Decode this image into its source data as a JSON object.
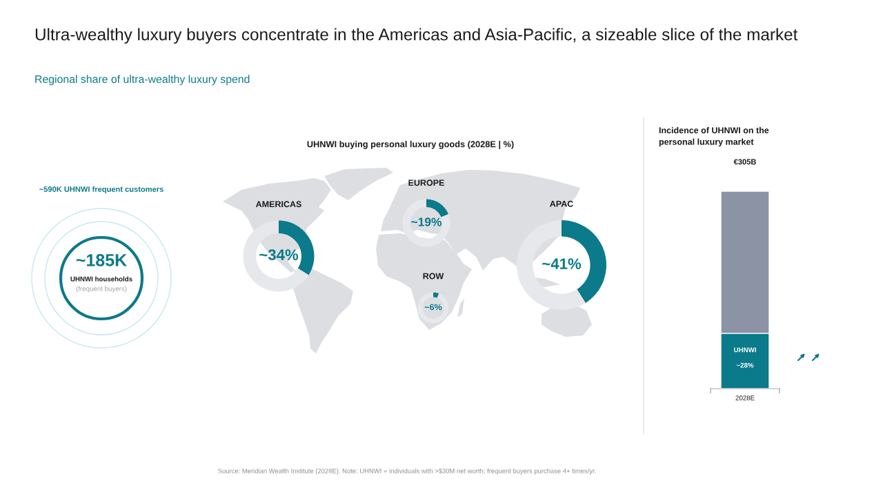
{
  "chart_data": [
    {
      "type": "other",
      "title": "Ultra-wealthy luxury buyers concentrate in the Americas and Asia-Pacific, a sizeable slice of the market",
      "subtitle": "Regional share of ultra-wealthy luxury spend",
      "annotations": [
        "Source: Meridian Wealth Institute (2028E). Note: UHNWI = individuals with >$30M net worth; frequent buyers purchase 4+ times/yr."
      ]
    },
    {
      "type": "other",
      "title": "~590K UHNWI frequent customers",
      "annotations": [
        "~185K",
        "UHNWI households",
        "(frequent buyers)"
      ]
    },
    {
      "type": "other",
      "title": "UHNWI buying personal luxury goods (2028E | %)"
    },
    {
      "type": "donut",
      "title": "AMERICAS",
      "categories": [
        null,
        null
      ],
      "values": [
        34,
        66
      ],
      "colors": [
        "#0b7a8a",
        "#e6e8eb"
      ],
      "value_labels": [
        "~34%",
        null
      ]
    },
    {
      "type": "donut",
      "title": "EUROPE",
      "categories": [
        null,
        null
      ],
      "values": [
        19,
        81
      ],
      "colors": [
        "#0b7a8a",
        "#e6e8eb"
      ],
      "value_labels": [
        "~19%",
        null
      ]
    },
    {
      "type": "donut",
      "title": "APAC",
      "categories": [
        null,
        null
      ],
      "values": [
        41,
        59
      ],
      "colors": [
        "#0b7a8a",
        "#e6e8eb"
      ],
      "value_labels": [
        "~41%",
        null
      ]
    },
    {
      "type": "donut",
      "title": "ROW",
      "categories": [
        null,
        null
      ],
      "values": [
        6,
        94
      ],
      "colors": [
        "#0b7a8a",
        "#e6e8eb"
      ],
      "value_labels": [
        "~6%",
        null
      ]
    },
    {
      "type": "bar",
      "title": "Incidence of UHNWI on the personal luxury market",
      "categories": [
        "2028E"
      ],
      "stacked": true,
      "series": [
        {
          "name": "UHNWI",
          "color": "#0b7a8a",
          "values": [
            28
          ],
          "value_labels": [
            "~28%"
          ]
        },
        {
          "color": "#8b93a4",
          "values": [
            72
          ]
        }
      ],
      "annotations": [
        "€305B"
      ]
    }
  ]
}
